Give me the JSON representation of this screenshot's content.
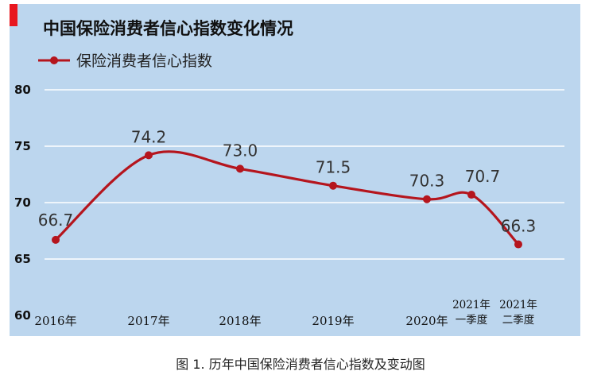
{
  "chart_data": {
    "type": "line",
    "title": "中国保险消费者信心指数变化情况",
    "legend": {
      "label": "保险消费者信心指数",
      "position": "top-left"
    },
    "categories": [
      [
        "2016年"
      ],
      [
        "2017年"
      ],
      [
        "2018年"
      ],
      [
        "2019年"
      ],
      [
        "2020年"
      ],
      [
        "2021年",
        "一季度"
      ],
      [
        "2021年",
        "二季度"
      ]
    ],
    "series": [
      {
        "name": "保险消费者信心指数",
        "values": [
          66.7,
          74.2,
          73.0,
          71.5,
          70.3,
          70.7,
          66.3
        ]
      }
    ],
    "data_labels": [
      "66.7",
      "74.2",
      "73.0",
      "71.5",
      "70.3",
      "70.7",
      "66.3"
    ],
    "yticks": [
      "80",
      "75",
      "70",
      "65",
      "60"
    ],
    "ylim": [
      60,
      80
    ],
    "grid": true,
    "colors": {
      "line": "#b5151d",
      "background": "#bcd6ee",
      "grid": "#ffffff",
      "accent_tab": "#e8171f"
    }
  },
  "caption": "图 1. 历年中国保险消费者信心指数及变动图"
}
